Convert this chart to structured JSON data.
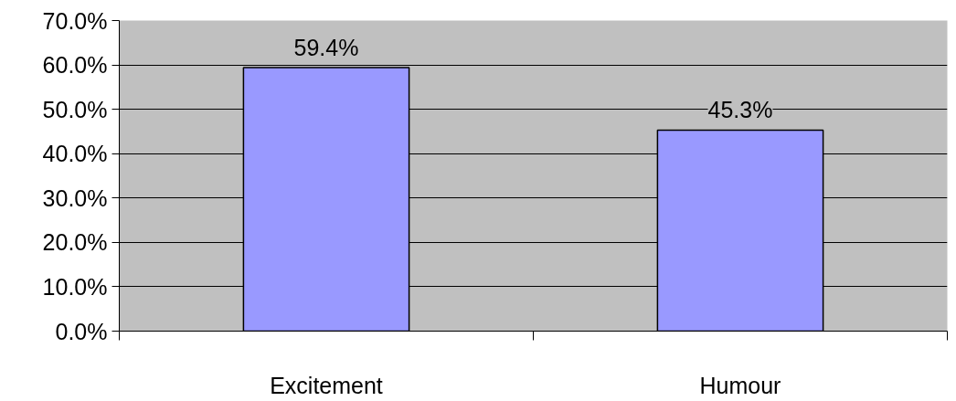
{
  "chart_data": {
    "type": "bar",
    "categories": [
      "Excitement",
      "Humour"
    ],
    "values": [
      59.4,
      45.3
    ],
    "color": "#9999ff",
    "value_labels": [
      "59.4%",
      "45.3%"
    ],
    "ylim": [
      0,
      70
    ],
    "yticks": [
      {
        "value": 0,
        "label": "0.0%"
      },
      {
        "value": 10,
        "label": "10.0%"
      },
      {
        "value": 20,
        "label": "20.0%"
      },
      {
        "value": 30,
        "label": "30.0%"
      },
      {
        "value": 40,
        "label": "40.0%"
      },
      {
        "value": 50,
        "label": "50.0%"
      },
      {
        "value": 60,
        "label": "60.0%"
      },
      {
        "value": 70,
        "label": "70.0%"
      }
    ],
    "grid": "y"
  }
}
